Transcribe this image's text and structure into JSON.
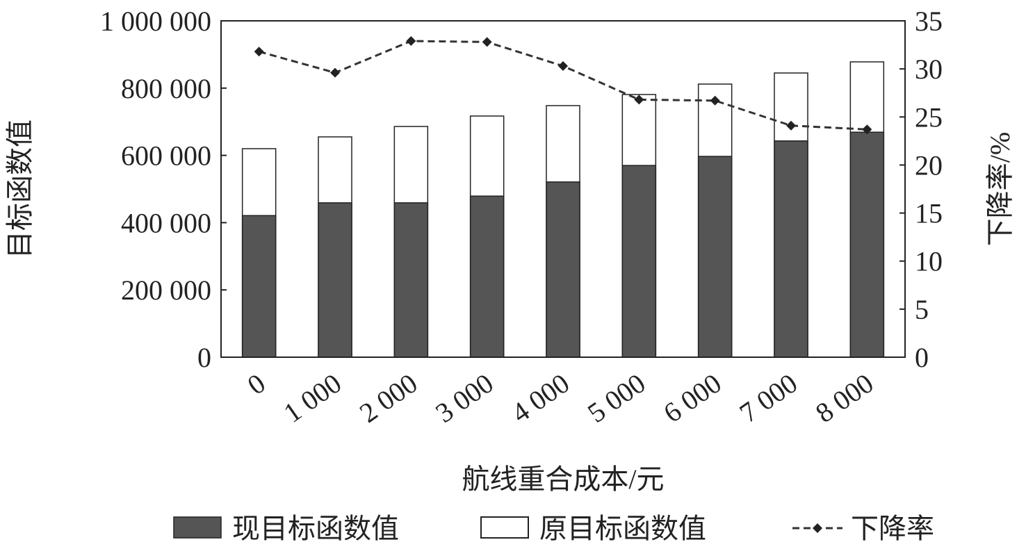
{
  "chart_data": {
    "type": "bar",
    "title": "",
    "xlabel": "航线重合成本/元",
    "ylabel": "目标函数值",
    "y2label": "下降率/%",
    "categories": [
      "0",
      "1 000",
      "2 000",
      "3 000",
      "4 000",
      "5 000",
      "6 000",
      "7 000",
      "8 000"
    ],
    "series": [
      {
        "name": "现目标函数值",
        "type": "bar",
        "axis": "left",
        "color": "#555555",
        "values": [
          421000,
          459000,
          459000,
          479000,
          521000,
          570000,
          597000,
          643000,
          669000
        ]
      },
      {
        "name": "原目标函数值",
        "type": "bar",
        "axis": "left",
        "color": "#ffffff",
        "values": [
          620000,
          655000,
          686000,
          717000,
          748000,
          781000,
          812000,
          845000,
          878000
        ]
      },
      {
        "name": "下降率",
        "type": "line",
        "axis": "right",
        "color": "#333333",
        "style": "dashed",
        "marker": "diamond",
        "values": [
          31.8,
          29.6,
          32.9,
          32.8,
          30.3,
          26.8,
          26.7,
          24.1,
          23.7
        ]
      }
    ],
    "ylim": [
      0,
      1000000
    ],
    "yticks": [
      "0",
      "200 000",
      "400 000",
      "600 000",
      "800 000",
      "1 000 000"
    ],
    "y2lim": [
      0,
      35
    ],
    "y2ticks": [
      "0",
      "5",
      "10",
      "15",
      "20",
      "25",
      "30",
      "35"
    ],
    "grid": false,
    "legend_position": "bottom"
  }
}
